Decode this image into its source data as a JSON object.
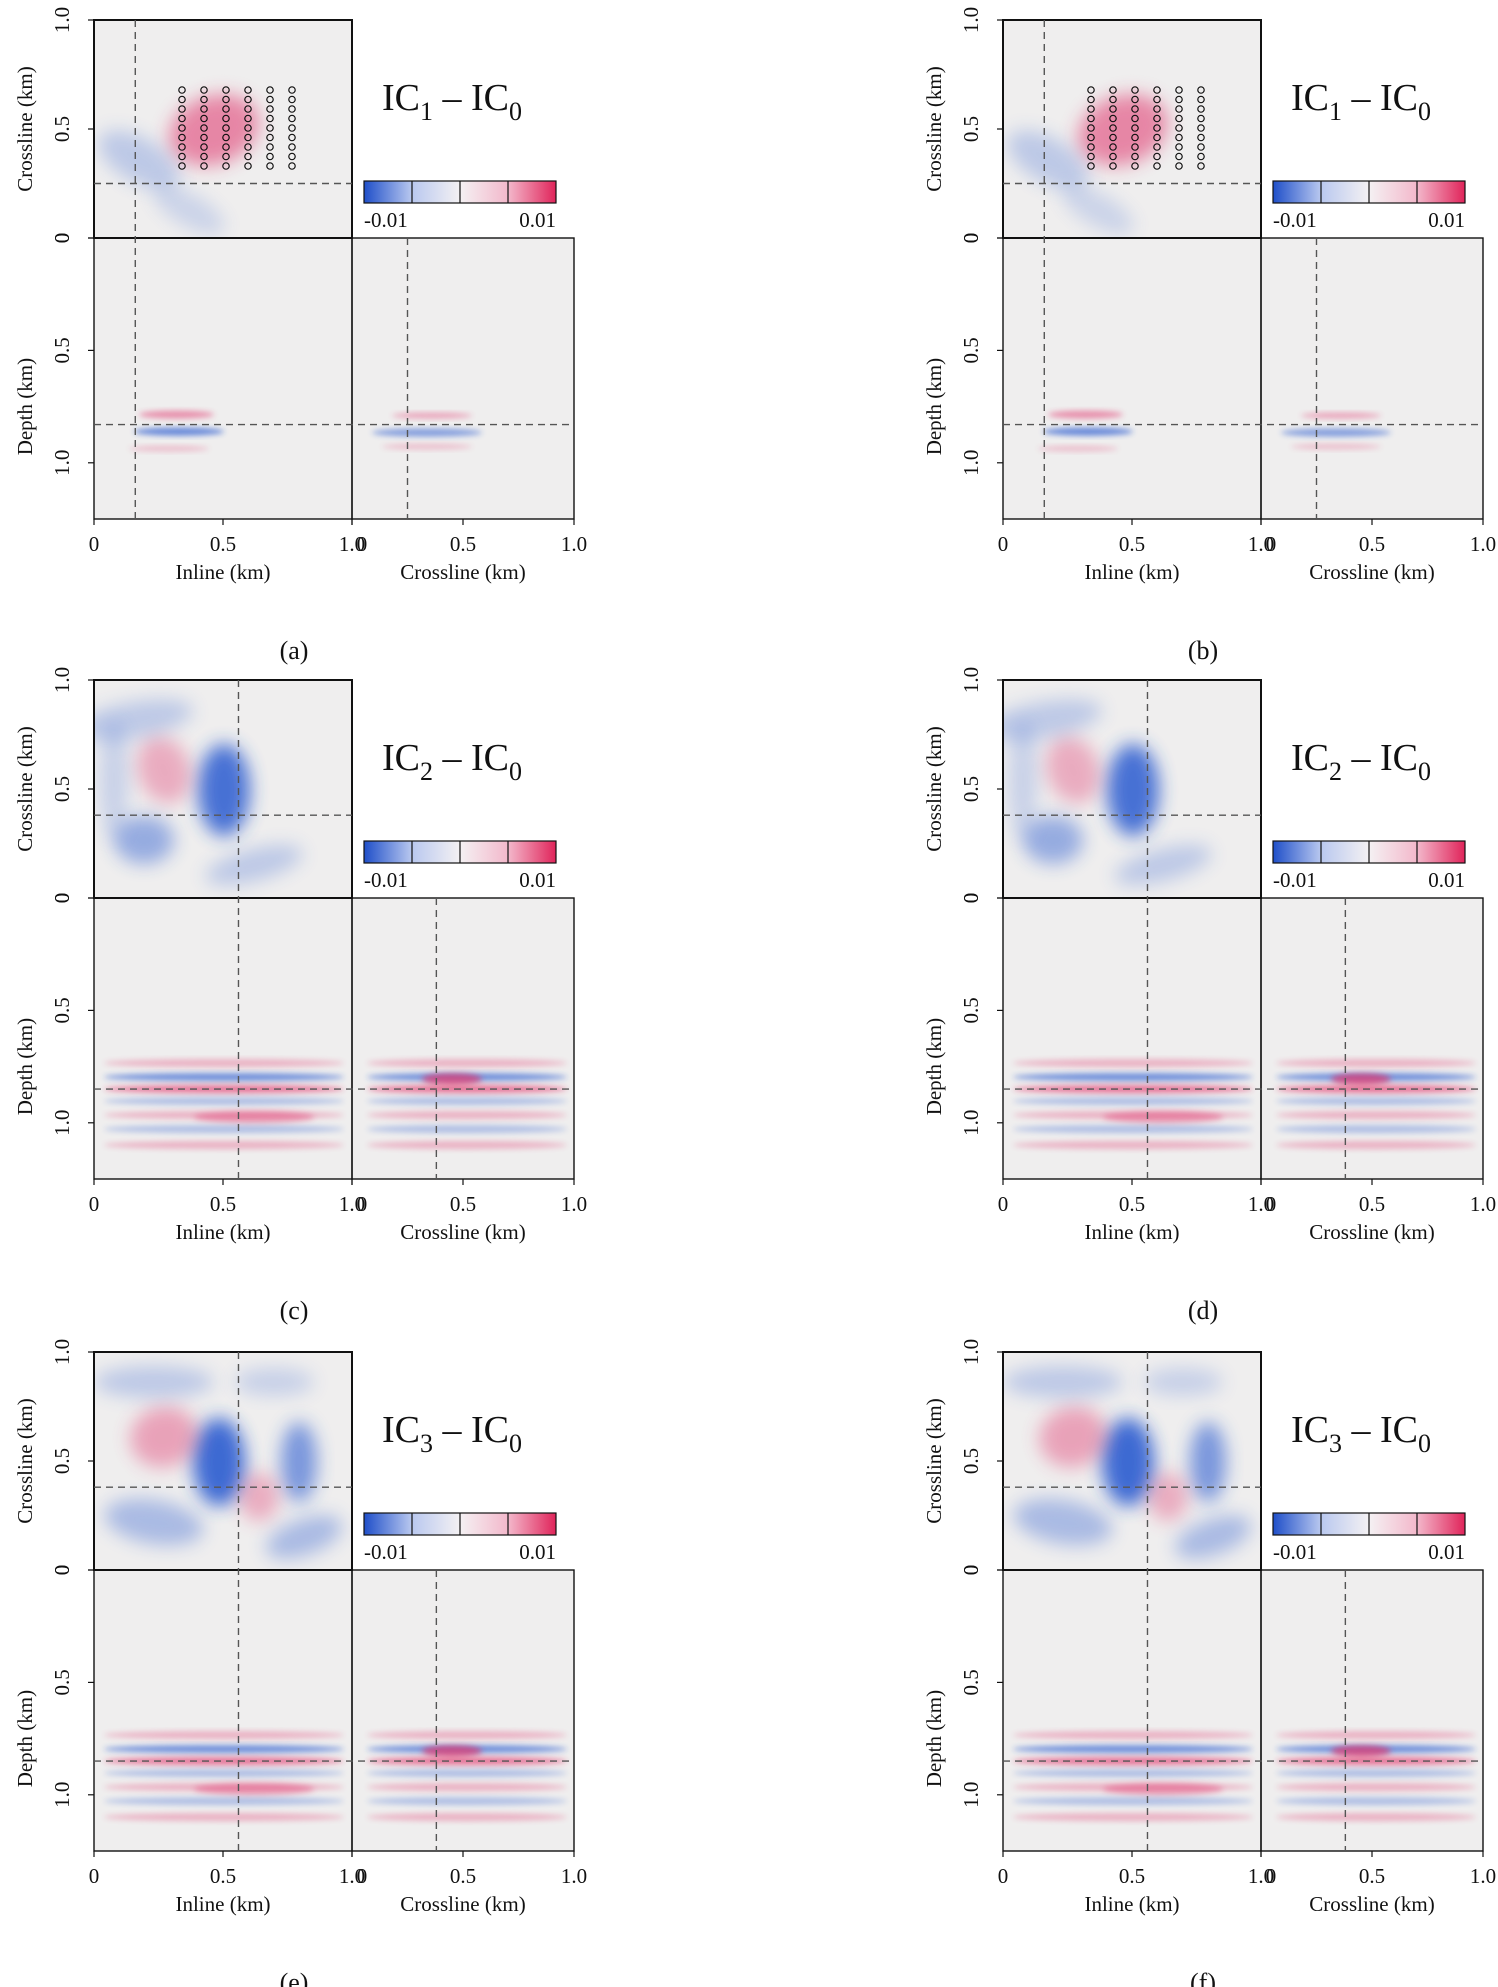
{
  "figure": {
    "panels": [
      {
        "label": "(a)",
        "title_base": "IC",
        "title_sub1": "1",
        "title_dash": " – IC",
        "title_sub2": "0",
        "show_receivers": true,
        "slice_inline_km": 0.16,
        "slice_crossline_km": 0.25,
        "slice_depth_km": 0.83
      },
      {
        "label": "(b)",
        "title_base": "IC",
        "title_sub1": "1",
        "title_dash": " – IC",
        "title_sub2": "0",
        "show_receivers": true,
        "slice_inline_km": 0.16,
        "slice_crossline_km": 0.25,
        "slice_depth_km": 0.83
      },
      {
        "label": "(c)",
        "title_base": "IC",
        "title_sub1": "2",
        "title_dash": " – IC",
        "title_sub2": "0",
        "show_receivers": false,
        "slice_inline_km": 0.56,
        "slice_crossline_km": 0.38,
        "slice_depth_km": 0.85
      },
      {
        "label": "(d)",
        "title_base": "IC",
        "title_sub1": "2",
        "title_dash": " – IC",
        "title_sub2": "0",
        "show_receivers": false,
        "slice_inline_km": 0.56,
        "slice_crossline_km": 0.38,
        "slice_depth_km": 0.85
      },
      {
        "label": "(e)",
        "title_base": "IC",
        "title_sub1": "3",
        "title_dash": " – IC",
        "title_sub2": "0",
        "show_receivers": false,
        "slice_inline_km": 0.56,
        "slice_crossline_km": 0.38,
        "slice_depth_km": 0.85
      },
      {
        "label": "(f)",
        "title_base": "IC",
        "title_sub1": "3",
        "title_dash": " – IC",
        "title_sub2": "0",
        "show_receivers": false,
        "slice_inline_km": 0.56,
        "slice_crossline_km": 0.38,
        "slice_depth_km": 0.85
      }
    ],
    "axes": {
      "inline_label": "Inline (km)",
      "crossline_label": "Crossline (km)",
      "depth_label": "Depth (km)",
      "map_ticks": [
        "0",
        "0.5",
        "1.0"
      ],
      "depth_ticks": [
        "0",
        "0.5",
        "1.0"
      ],
      "inline_ticks": [
        "0",
        "0.5",
        "1.0"
      ],
      "crossline_ticks": [
        "0",
        "0.5",
        "1.0"
      ]
    },
    "colorbar": {
      "min_label": "-0.01",
      "max_label": "0.01",
      "colors": [
        "#1f4fc9",
        "#b9c8ef",
        "#f4f1f3",
        "#f3b8cb",
        "#e0245a"
      ]
    },
    "colors": {
      "background": "#efeeee",
      "negative": "#2a5bd0",
      "positive": "#e0306a",
      "slice_line": "#555555"
    }
  }
}
